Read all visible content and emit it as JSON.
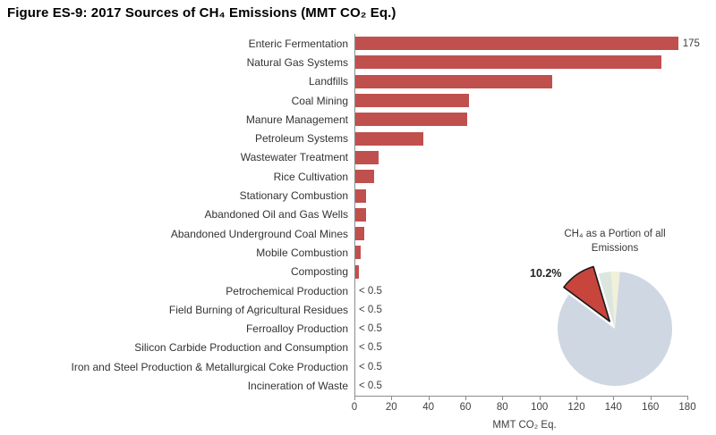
{
  "title": "Figure ES-9:  2017 Sources of CH₄ Emissions (MMT CO₂ Eq.)",
  "colors": {
    "bar": "#c0504d",
    "axis": "#8c8c8c",
    "category_text": "#333333",
    "tick_text": "#404040",
    "pie_remainder": "#cfd7e3",
    "pie_methane": "#c7453d",
    "pie_sliver_blue": "#dbe6de",
    "pie_sliver_yellow": "#f0f1d8",
    "pie_outline": "#1a1a1a"
  },
  "chart_data": [
    {
      "type": "bar",
      "orientation": "horizontal",
      "xlabel": "MMT CO₂ Eq.",
      "xlim": [
        0,
        180
      ],
      "xticks": [
        0,
        20,
        40,
        60,
        80,
        100,
        120,
        140,
        160,
        180
      ],
      "grid": false,
      "bar_color": "#c0504d",
      "bars": [
        {
          "label": "Enteric Fermentation",
          "value": 175,
          "annotation": "175"
        },
        {
          "label": "Natural Gas Systems",
          "value": 166,
          "annotation": ""
        },
        {
          "label": "Landfills",
          "value": 107,
          "annotation": ""
        },
        {
          "label": "Coal Mining",
          "value": 62,
          "annotation": ""
        },
        {
          "label": "Manure Management",
          "value": 61,
          "annotation": ""
        },
        {
          "label": "Petroleum Systems",
          "value": 37,
          "annotation": ""
        },
        {
          "label": "Wastewater Treatment",
          "value": 13,
          "annotation": ""
        },
        {
          "label": "Rice Cultivation",
          "value": 10.5,
          "annotation": ""
        },
        {
          "label": "Stationary Combustion",
          "value": 6.5,
          "annotation": ""
        },
        {
          "label": "Abandoned Oil and Gas Wells",
          "value": 6.5,
          "annotation": ""
        },
        {
          "label": "Abandoned Underground Coal Mines",
          "value": 5.5,
          "annotation": ""
        },
        {
          "label": "Mobile Combustion",
          "value": 3.5,
          "annotation": ""
        },
        {
          "label": "Composting",
          "value": 2.5,
          "annotation": ""
        },
        {
          "label": "Petrochemical Production",
          "value": 0,
          "annotation": "< 0.5"
        },
        {
          "label": "Field Burning of Agricultural Residues",
          "value": 0,
          "annotation": "< 0.5"
        },
        {
          "label": "Ferroalloy Production",
          "value": 0,
          "annotation": "< 0.5"
        },
        {
          "label": "Silicon Carbide Production and Consumption",
          "value": 0,
          "annotation": "< 0.5"
        },
        {
          "label": "Iron and Steel Production & Metallurgical Coke Production",
          "value": 0,
          "annotation": "< 0.5"
        },
        {
          "label": "Incineration of Waste",
          "value": 0,
          "annotation": "< 0.5"
        }
      ]
    },
    {
      "type": "pie",
      "title": "CH₄ as a Portion of all Emissions",
      "labeled_slice": {
        "name": "CH₄",
        "pct": 10.2,
        "label": "10.2%"
      },
      "start_deg": -5,
      "direction": "counterclockwise",
      "legend": "none",
      "slices": [
        {
          "name": "unlabeled-sliver-yellow",
          "pct": 2.5,
          "color": "#f0f1d8",
          "exploded": false,
          "outlined": false
        },
        {
          "name": "unlabeled-sliver-blue",
          "pct": 3.5,
          "color": "#dbe6de",
          "exploded": false,
          "outlined": false
        },
        {
          "name": "methane",
          "pct": 10.2,
          "color": "#c7453d",
          "exploded": true,
          "outlined": true
        },
        {
          "name": "remainder",
          "pct": 83.8,
          "color": "#cfd7e3",
          "exploded": false,
          "outlined": false
        }
      ]
    }
  ]
}
